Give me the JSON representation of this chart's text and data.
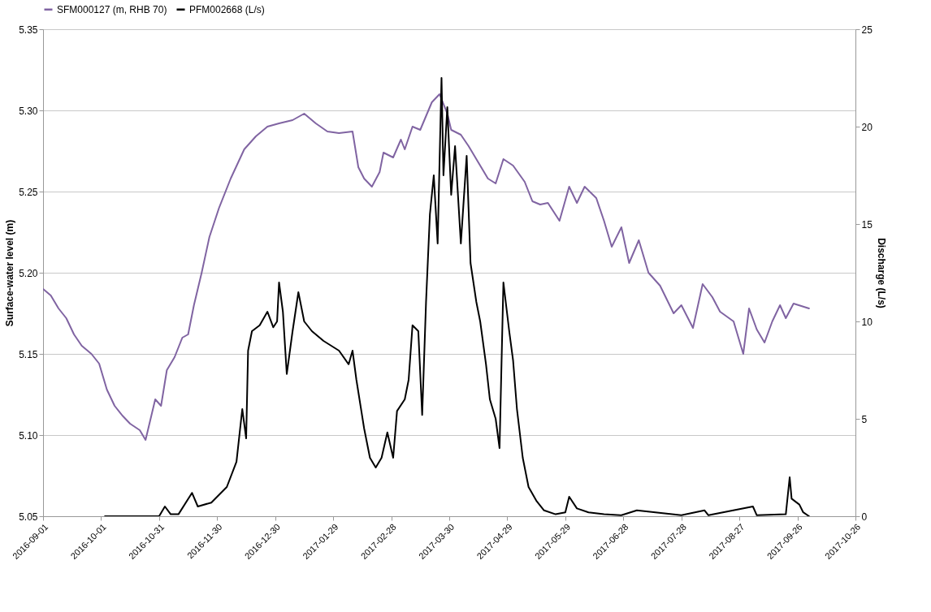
{
  "chart_data": {
    "type": "line",
    "ylabel": "Surface-water level (m)",
    "y2label": "Discharge (L/s)",
    "xlim": [
      "2016-09-01",
      "2017-10-26"
    ],
    "xticks": [
      "2016-09-01",
      "2016-10-01",
      "2016-10-31",
      "2016-11-30",
      "2016-12-30",
      "2017-01-29",
      "2017-02-28",
      "2017-03-30",
      "2017-04-29",
      "2017-05-29",
      "2017-06-28",
      "2017-07-28",
      "2017-08-27",
      "2017-09-26",
      "2017-10-26"
    ],
    "ylim": [
      5.05,
      5.35
    ],
    "yticks": [
      5.05,
      {
        "value": 5.1,
        "label": "5.10"
      },
      5.15,
      {
        "value": 5.2,
        "label": "5.20"
      },
      5.25,
      {
        "value": 5.3,
        "label": "5.30"
      },
      5.35
    ],
    "y2lim": [
      0,
      25
    ],
    "y2ticks": [
      0,
      5,
      10,
      15,
      20,
      25
    ],
    "grid": "y",
    "legend": "top",
    "marker": "none",
    "line_style": "solid",
    "series": [
      {
        "name": "SFM000127 (m, RHB 70)",
        "color": "#8064a2",
        "x": [
          "2016-09-01",
          "2016-09-05",
          "2016-09-09",
          "2016-09-13",
          "2016-09-17",
          "2016-09-21",
          "2016-09-26",
          "2016-09-30",
          "2016-10-04",
          "2016-10-08",
          "2016-10-12",
          "2016-10-16",
          "2016-10-21",
          "2016-10-24",
          "2016-10-27",
          "2016-10-29",
          "2016-11-01",
          "2016-11-04",
          "2016-11-08",
          "2016-11-12",
          "2016-11-15",
          "2016-11-18",
          "2016-11-22",
          "2016-11-26",
          "2016-12-01",
          "2016-12-07",
          "2016-12-14",
          "2016-12-20",
          "2016-12-26",
          "2017-01-01",
          "2017-01-08",
          "2017-01-14",
          "2017-01-20",
          "2017-01-26",
          "2017-02-01",
          "2017-02-08",
          "2017-02-11",
          "2017-02-14",
          "2017-02-18",
          "2017-02-22",
          "2017-02-24",
          "2017-03-01",
          "2017-03-05",
          "2017-03-07",
          "2017-03-11",
          "2017-03-15",
          "2017-03-21",
          "2017-03-25",
          "2017-03-29",
          "2017-03-31",
          "2017-04-05",
          "2017-04-09",
          "2017-04-14",
          "2017-04-19",
          "2017-04-23",
          "2017-04-27",
          "2017-05-02",
          "2017-05-08",
          "2017-05-12",
          "2017-05-16",
          "2017-05-20",
          "2017-05-26",
          "2017-05-31",
          "2017-06-04",
          "2017-06-08",
          "2017-06-14",
          "2017-06-18",
          "2017-06-22",
          "2017-06-27",
          "2017-07-01",
          "2017-07-06",
          "2017-07-11",
          "2017-07-17",
          "2017-07-24",
          "2017-07-28",
          "2017-08-03",
          "2017-08-08",
          "2017-08-13",
          "2017-08-17",
          "2017-08-24",
          "2017-08-29",
          "2017-09-01",
          "2017-09-05",
          "2017-09-09",
          "2017-09-13",
          "2017-09-17",
          "2017-09-20",
          "2017-09-24",
          "2017-10-02"
        ],
        "values": [
          5.19,
          5.186,
          5.178,
          5.172,
          5.162,
          5.155,
          5.15,
          5.144,
          5.128,
          5.118,
          5.112,
          5.107,
          5.103,
          5.097,
          5.112,
          5.122,
          5.118,
          5.14,
          5.148,
          5.16,
          5.162,
          5.18,
          5.2,
          5.222,
          5.24,
          5.258,
          5.276,
          5.284,
          5.29,
          5.292,
          5.294,
          5.298,
          5.292,
          5.287,
          5.286,
          5.287,
          5.265,
          5.258,
          5.253,
          5.262,
          5.274,
          5.271,
          5.282,
          5.276,
          5.29,
          5.288,
          5.305,
          5.31,
          5.298,
          5.288,
          5.285,
          5.278,
          5.268,
          5.258,
          5.255,
          5.27,
          5.266,
          5.256,
          5.244,
          5.242,
          5.243,
          5.232,
          5.253,
          5.243,
          5.253,
          5.246,
          5.232,
          5.216,
          5.228,
          5.206,
          5.22,
          5.2,
          5.192,
          5.175,
          5.18,
          5.166,
          5.193,
          5.185,
          5.176,
          5.17,
          5.15,
          5.178,
          5.165,
          5.157,
          5.17,
          5.18,
          5.172,
          5.181,
          5.178
        ]
      },
      {
        "name": "PFM002668 (L/s)",
        "color": "#000000",
        "axis": "y2",
        "x": [
          "2016-10-03",
          "2016-10-31",
          "2016-11-03",
          "2016-11-06",
          "2016-11-10",
          "2016-11-17",
          "2016-11-20",
          "2016-11-27",
          "2016-12-05",
          "2016-12-10",
          "2016-12-13",
          "2016-12-15",
          "2016-12-16",
          "2016-12-18",
          "2016-12-22",
          "2016-12-26",
          "2016-12-29",
          "2016-12-31",
          "2017-01-01",
          "2017-01-03",
          "2017-01-05",
          "2017-01-08",
          "2017-01-11",
          "2017-01-14",
          "2017-01-18",
          "2017-01-24",
          "2017-02-01",
          "2017-02-06",
          "2017-02-08",
          "2017-02-10",
          "2017-02-14",
          "2017-02-17",
          "2017-02-20",
          "2017-02-23",
          "2017-02-26",
          "2017-03-01",
          "2017-03-03",
          "2017-03-07",
          "2017-03-09",
          "2017-03-11",
          "2017-03-14",
          "2017-03-16",
          "2017-03-18",
          "2017-03-20",
          "2017-03-22",
          "2017-03-24",
          "2017-03-26",
          "2017-03-27",
          "2017-03-29",
          "2017-03-31",
          "2017-04-02",
          "2017-04-05",
          "2017-04-08",
          "2017-04-10",
          "2017-04-13",
          "2017-04-15",
          "2017-04-18",
          "2017-04-20",
          "2017-04-23",
          "2017-04-25",
          "2017-04-27",
          "2017-04-30",
          "2017-05-02",
          "2017-05-04",
          "2017-05-07",
          "2017-05-10",
          "2017-05-14",
          "2017-05-18",
          "2017-05-24",
          "2017-05-29",
          "2017-05-31",
          "2017-06-04",
          "2017-06-10",
          "2017-06-18",
          "2017-06-27",
          "2017-07-05",
          "2017-07-28",
          "2017-08-09",
          "2017-08-11",
          "2017-09-03",
          "2017-09-05",
          "2017-09-20",
          "2017-09-22",
          "2017-09-23",
          "2017-09-27",
          "2017-09-29",
          "2017-10-02"
        ],
        "values": [
          0,
          0,
          0.5,
          0.1,
          0.1,
          1.2,
          0.5,
          0.7,
          1.5,
          2.8,
          5.5,
          4.0,
          8.5,
          9.5,
          9.8,
          10.5,
          9.7,
          10.0,
          12.0,
          10.5,
          7.3,
          9.5,
          11.5,
          10.0,
          9.5,
          9.0,
          8.5,
          7.8,
          8.5,
          7.0,
          4.5,
          3.0,
          2.5,
          3.0,
          4.3,
          3.0,
          5.4,
          6.0,
          7.0,
          9.8,
          9.5,
          5.2,
          11.0,
          15.5,
          17.5,
          14.0,
          22.5,
          17.5,
          21.0,
          16.5,
          19.0,
          14.0,
          18.5,
          13.0,
          11.0,
          10.0,
          7.8,
          6.0,
          5.0,
          3.5,
          12.0,
          9.5,
          8.0,
          5.5,
          3.0,
          1.5,
          0.8,
          0.3,
          0.1,
          0.2,
          1.0,
          0.4,
          0.2,
          0.1,
          0.05,
          0.3,
          0.05,
          0.3,
          0.05,
          0.5,
          0.05,
          0.1,
          2.0,
          0.9,
          0.6,
          0.2,
          0
        ]
      }
    ]
  }
}
